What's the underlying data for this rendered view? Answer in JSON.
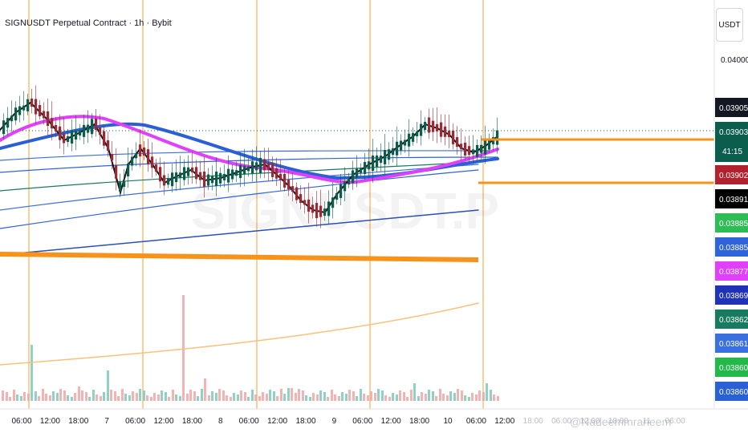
{
  "header": {
    "symbol_title": "SIGNUSDT Perpetual Contract · 1h · Bybit"
  },
  "price_scale": {
    "currency": "USDT",
    "top_price": "0.04000",
    "countdown": "41:15",
    "tags": [
      {
        "price": "0.03905",
        "bg": "#131722",
        "fg": "#ffffff"
      },
      {
        "price": "0.03903",
        "bg": "#0b5e4c",
        "fg": "#ffffff"
      },
      {
        "price": "0.03902",
        "bg": "#b2212e",
        "fg": "#ffffff"
      },
      {
        "price": "0.03891",
        "bg": "#000000",
        "fg": "#ffffff"
      },
      {
        "price": "0.03885",
        "bg": "#2ebd55",
        "fg": "#ffffff"
      },
      {
        "price": "0.03885",
        "bg": "#2f63d9",
        "fg": "#ffffff"
      },
      {
        "price": "0.03877",
        "bg": "#e040fb",
        "fg": "#ffffff"
      },
      {
        "price": "0.03869",
        "bg": "#1f32b8",
        "fg": "#ffffff"
      },
      {
        "price": "0.03862",
        "bg": "#187a5e",
        "fg": "#ffffff"
      },
      {
        "price": "0.03861",
        "bg": "#3a6fe0",
        "fg": "#ffffff"
      },
      {
        "price": "0.03860",
        "bg": "#22b84a",
        "fg": "#ffffff"
      },
      {
        "price": "0.03860",
        "bg": "#2a5fd6",
        "fg": "#ffffff"
      }
    ]
  },
  "time_axis": {
    "labels": [
      "06:00",
      "12:00",
      "18:00",
      "7",
      "06:00",
      "12:00",
      "18:00",
      "8",
      "06:00",
      "12:00",
      "18:00",
      "9",
      "06:00",
      "12:00",
      "18:00",
      "10",
      "06:00",
      "12:00",
      "18:00",
      "06:00",
      "12:00",
      "18:00",
      "11",
      "06:00"
    ]
  },
  "watermark": {
    "text": "SIGNUSDT.P"
  },
  "footer": {
    "credit": "@Nadeemmraneem"
  },
  "colors": {
    "bull": "#0b5e4c",
    "bear": "#9b2a35",
    "session_line": "#f0a030",
    "hline": "#f7931a",
    "ma_black": "#111111",
    "ma_pink": "#e040fb",
    "ma_blue": "#2a5fd6"
  }
}
